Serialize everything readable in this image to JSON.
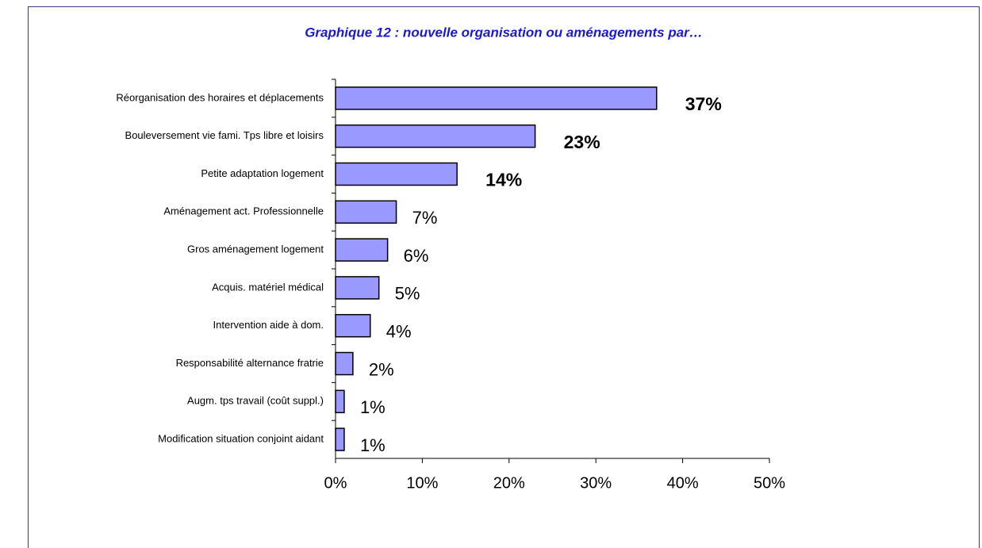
{
  "chart_data": {
    "type": "barh",
    "title": "Graphique 12 : nouvelle organisation ou aménagements par…",
    "categories": [
      "Réorganisation des horaires et déplacements",
      "Bouleversement vie fami. Tps libre et loisirs",
      "Petite adaptation logement",
      "Aménagement act. Professionnelle",
      "Gros aménagement logement",
      "Acquis. matériel médical",
      "Intervention aide à dom.",
      "Responsabilité alternance fratrie",
      "Augm. tps travail (coût suppl.)",
      "Modification situation conjoint aidant"
    ],
    "values": [
      37,
      23,
      14,
      7,
      6,
      5,
      4,
      2,
      1,
      1
    ],
    "value_labels": [
      "37%",
      "23%",
      "14%",
      "7%",
      "6%",
      "5%",
      "4%",
      "2%",
      "1%",
      "1%"
    ],
    "emphasized": [
      true,
      true,
      true,
      false,
      false,
      false,
      false,
      false,
      false,
      false
    ],
    "color": "#9999ff",
    "xlim": [
      0,
      50
    ],
    "xticks": [
      {
        "value": 0,
        "label": "0%"
      },
      {
        "value": 10,
        "label": "10%"
      },
      {
        "value": 20,
        "label": "20%"
      },
      {
        "value": 30,
        "label": "30%"
      },
      {
        "value": 40,
        "label": "40%"
      },
      {
        "value": 50,
        "label": "50%"
      }
    ]
  }
}
